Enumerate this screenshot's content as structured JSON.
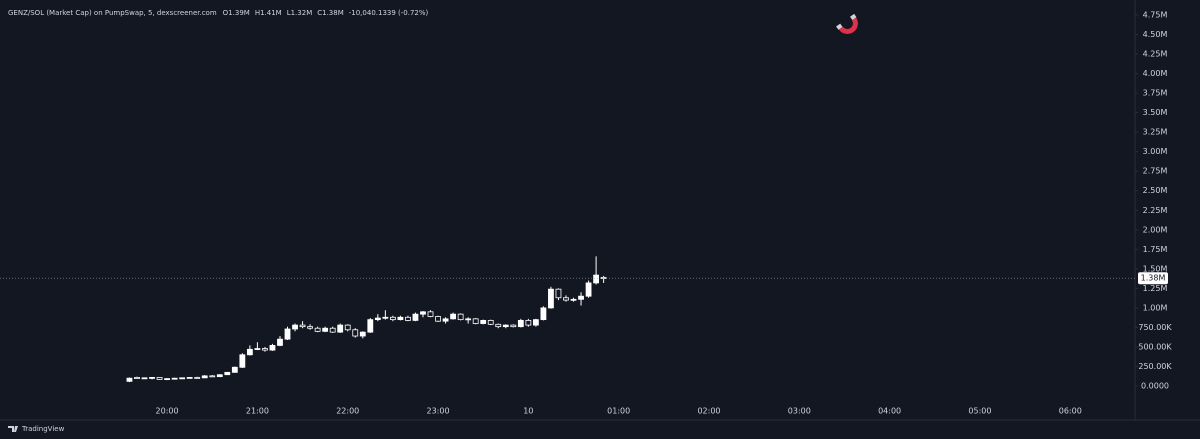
{
  "chart_data": {
    "type": "candlestick",
    "title": "GENZ/SOL (Market Cap) on PumpSwap, 5, dexscreener.com",
    "ohlc_text": [
      "O1.39M",
      "H1.41M",
      "L1.32M",
      "C1.38M"
    ],
    "change_text": "-10,040.1339 (-0.72%)",
    "up_color": "#ffffff",
    "down_color": "#131722",
    "wick_color": "#ffffff",
    "grid": false,
    "x": [
      "19:35",
      "19:40",
      "19:45",
      "19:50",
      "19:55",
      "20:00",
      "20:05",
      "20:10",
      "20:15",
      "20:20",
      "20:25",
      "20:30",
      "20:35",
      "20:40",
      "20:45",
      "20:50",
      "20:55",
      "21:00",
      "21:05",
      "21:10",
      "21:15",
      "21:20",
      "21:25",
      "21:30",
      "21:35",
      "21:40",
      "21:45",
      "21:50",
      "21:55",
      "22:00",
      "22:05",
      "22:10",
      "22:15",
      "22:20",
      "22:25",
      "22:30",
      "22:35",
      "22:40",
      "22:45",
      "22:50",
      "22:55",
      "23:00",
      "23:05",
      "23:10",
      "23:15",
      "23:20",
      "23:25",
      "23:30",
      "23:35",
      "23:40",
      "23:45",
      "23:50",
      "23:55",
      "00:00",
      "00:05",
      "00:10",
      "00:15",
      "00:20",
      "00:25",
      "00:30",
      "00:35",
      "00:40",
      "00:45",
      "00:50"
    ],
    "open": [
      60000,
      110000,
      95000,
      100000,
      110000,
      85000,
      95000,
      100000,
      105000,
      110000,
      105000,
      130000,
      120000,
      145000,
      175000,
      240000,
      400000,
      470000,
      480000,
      460000,
      520000,
      600000,
      730000,
      780000,
      760000,
      740000,
      700000,
      740000,
      690000,
      780000,
      720000,
      640000,
      690000,
      850000,
      870000,
      880000,
      850000,
      880000,
      840000,
      920000,
      950000,
      890000,
      830000,
      860000,
      920000,
      850000,
      860000,
      800000,
      840000,
      790000,
      760000,
      780000,
      760000,
      840000,
      780000,
      850000,
      1000000,
      1240000,
      1130000,
      1100000,
      1110000,
      1150000,
      1320000,
      1390000
    ],
    "high": [
      110000,
      120000,
      110000,
      115000,
      115000,
      100000,
      105000,
      110000,
      115000,
      120000,
      140000,
      140000,
      150000,
      180000,
      250000,
      420000,
      520000,
      560000,
      500000,
      540000,
      640000,
      760000,
      800000,
      830000,
      790000,
      760000,
      760000,
      760000,
      800000,
      790000,
      740000,
      700000,
      870000,
      920000,
      970000,
      900000,
      900000,
      900000,
      940000,
      960000,
      970000,
      900000,
      880000,
      940000,
      930000,
      880000,
      870000,
      850000,
      850000,
      800000,
      790000,
      790000,
      860000,
      860000,
      860000,
      1020000,
      1270000,
      1250000,
      1160000,
      1130000,
      1200000,
      1350000,
      1660000,
      1410000
    ],
    "low": [
      50000,
      90000,
      90000,
      85000,
      80000,
      75000,
      90000,
      95000,
      100000,
      100000,
      100000,
      115000,
      115000,
      140000,
      170000,
      230000,
      390000,
      460000,
      440000,
      450000,
      510000,
      590000,
      700000,
      740000,
      720000,
      690000,
      690000,
      680000,
      680000,
      700000,
      620000,
      610000,
      680000,
      830000,
      850000,
      830000,
      840000,
      830000,
      830000,
      880000,
      880000,
      820000,
      800000,
      850000,
      840000,
      800000,
      790000,
      790000,
      780000,
      740000,
      740000,
      750000,
      750000,
      760000,
      760000,
      840000,
      990000,
      1100000,
      1080000,
      1080000,
      1030000,
      1130000,
      1300000,
      1320000
    ],
    "close": [
      100000,
      95000,
      105000,
      110000,
      85000,
      95000,
      100000,
      105000,
      110000,
      105000,
      130000,
      120000,
      145000,
      175000,
      240000,
      400000,
      470000,
      480000,
      460000,
      520000,
      600000,
      730000,
      780000,
      760000,
      740000,
      700000,
      740000,
      690000,
      780000,
      720000,
      640000,
      690000,
      850000,
      870000,
      880000,
      850000,
      880000,
      840000,
      920000,
      950000,
      890000,
      830000,
      860000,
      920000,
      850000,
      860000,
      800000,
      840000,
      790000,
      760000,
      780000,
      760000,
      840000,
      780000,
      850000,
      1000000,
      1240000,
      1130000,
      1100000,
      1110000,
      1150000,
      1320000,
      1420000,
      1380000
    ],
    "xlim": [
      "18:09",
      "06:43"
    ],
    "xticks": [
      "20:00",
      "21:00",
      "22:00",
      "23:00",
      {
        "value": "00:00",
        "label": "10"
      },
      "01:00",
      "02:00",
      "03:00",
      "04:00",
      "05:00",
      "06:00"
    ],
    "ylim": [
      -307000,
      4942000
    ],
    "yticks": [
      {
        "value": 0,
        "label": "0.0000"
      },
      {
        "value": 250000,
        "label": "250.00K"
      },
      {
        "value": 500000,
        "label": "500.00K"
      },
      {
        "value": 750000,
        "label": "750.00K"
      },
      {
        "value": 1000000,
        "label": "1.00M"
      },
      {
        "value": 1250000,
        "label": "1.25M"
      },
      {
        "value": 1500000,
        "label": "1.50M"
      },
      {
        "value": 1750000,
        "label": "1.75M"
      },
      {
        "value": 2000000,
        "label": "2.00M"
      },
      {
        "value": 2250000,
        "label": "2.25M"
      },
      {
        "value": 2500000,
        "label": "2.50M"
      },
      {
        "value": 2750000,
        "label": "2.75M"
      },
      {
        "value": 3000000,
        "label": "3.00M"
      },
      {
        "value": 3250000,
        "label": "3.25M"
      },
      {
        "value": 3500000,
        "label": "3.50M"
      },
      {
        "value": 3750000,
        "label": "3.75M"
      },
      {
        "value": 4000000,
        "label": "4.00M"
      },
      {
        "value": 4250000,
        "label": "4.25M"
      },
      {
        "value": 4500000,
        "label": "4.50M"
      },
      {
        "value": 4750000,
        "label": "4.75M"
      }
    ],
    "last_price": {
      "value": 1380000,
      "label": "1.38M"
    }
  },
  "footer": {
    "brand": "TradingView"
  }
}
